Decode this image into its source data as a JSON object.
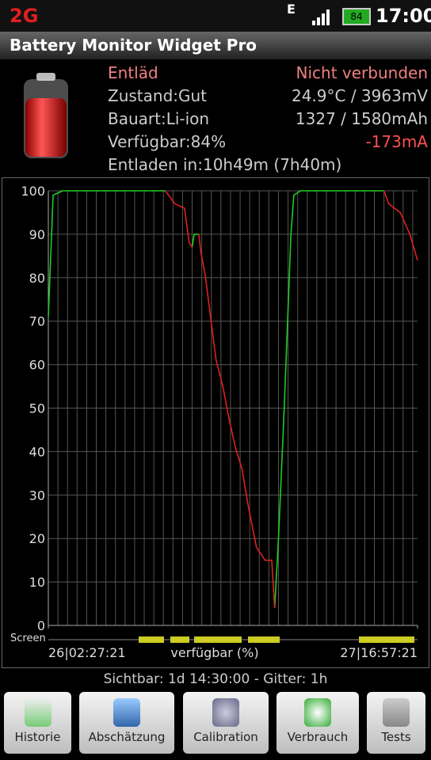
{
  "status_bar": {
    "network": "2G",
    "data": "E",
    "battery": "84",
    "time": "17:00"
  },
  "header": {
    "title": "Battery Monitor Widget Pro"
  },
  "info": {
    "left": [
      "Entläd",
      "Zustand:Gut",
      "Bauart:Li-ion",
      "Verfügbar:84%",
      "Entladen in:10h49m (7h40m)"
    ],
    "right": [
      "Nicht verbunden",
      "24.9°C / 3963mV",
      "1327 / 1580mAh",
      "-173mA"
    ]
  },
  "chart_data": {
    "type": "line",
    "x": [
      0,
      0.5,
      1.5,
      12.2,
      13.2,
      14.2,
      14.7,
      15.0,
      15.2,
      15.7,
      15.9,
      16.4,
      17.2,
      17.5,
      18.2,
      18.8,
      19.5,
      20.2,
      20.8,
      21.7,
      22.6,
      23.3,
      23.6,
      24.0,
      24.6,
      25.3,
      25.6,
      26.3,
      35.0,
      35.5,
      36.7,
      37.7,
      38.5
    ],
    "series": [
      {
        "color": "#22cc22",
        "values": [
          71,
          99,
          100,
          100,
          null,
          null,
          null,
          87,
          90,
          90,
          null,
          null,
          null,
          null,
          null,
          null,
          null,
          null,
          null,
          null,
          null,
          null,
          4,
          20,
          50,
          90,
          99,
          100,
          100,
          null,
          null,
          null,
          null
        ]
      },
      {
        "color": "#e02020",
        "values": [
          null,
          null,
          null,
          100,
          97,
          96,
          88,
          87,
          null,
          90,
          86,
          80,
          66,
          61,
          55,
          48,
          41,
          36,
          28,
          18,
          15,
          15,
          4,
          null,
          null,
          null,
          null,
          null,
          100,
          97,
          95,
          90,
          84
        ]
      }
    ],
    "xlim": [
      0,
      38.5
    ],
    "xticks": [
      {
        "value": 0,
        "label": "26|02:27:21"
      },
      {
        "value": 38.5,
        "label": "27|16:57:21"
      }
    ],
    "x_label": "verfügbar (%)",
    "ylim": [
      0,
      100
    ],
    "yticks": [
      0,
      10,
      20,
      30,
      40,
      50,
      60,
      70,
      80,
      90,
      100
    ],
    "x_grid_step": 1,
    "grid": true,
    "screen_label": "Screen"
  },
  "footer": "Sichtbar: 1d 14:30:00 - Gitter: 1h",
  "buttons": [
    "Historie",
    "Abschätzung",
    "Calibration",
    "Verbrauch",
    "Tests"
  ]
}
